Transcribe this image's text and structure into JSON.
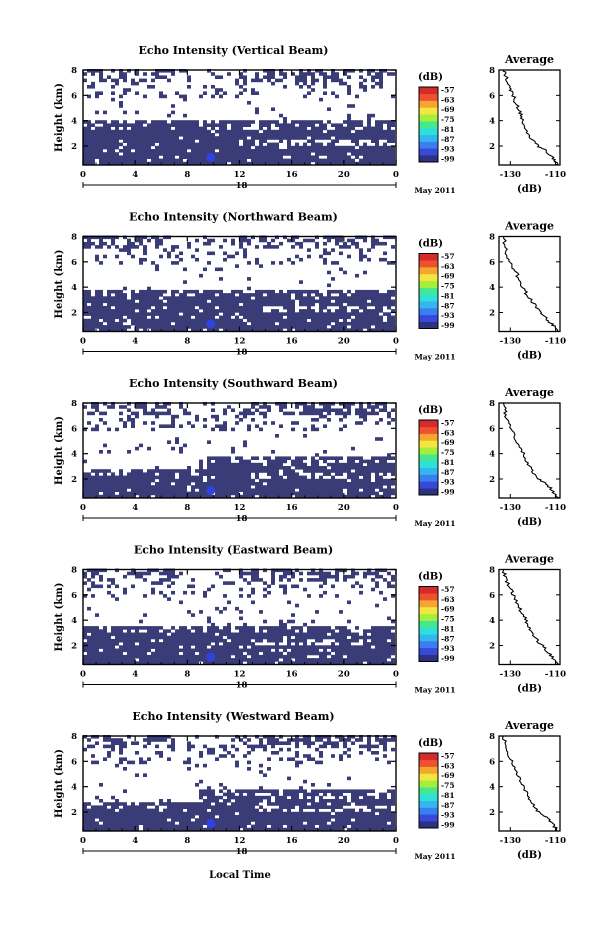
{
  "colors": {
    "echo": "#3a3c78",
    "echo_dark": "#2d2e6a",
    "blob": "#2e44e0",
    "colorbar": [
      "#2e3080",
      "#3848d8",
      "#3a7ef0",
      "#34b6f0",
      "#2ee0d8",
      "#44e890",
      "#a6ee3c",
      "#f4e640",
      "#f4a62e",
      "#ee5030",
      "#d42c2c"
    ]
  },
  "xlabel": "Local Time",
  "date_label": "May 2011",
  "day_label": "18",
  "ylabel": "Height (km)",
  "cbar_unit": "(dB)",
  "cbar_ticks": [
    "-57",
    "-63",
    "-69",
    "-75",
    "-81",
    "-87",
    "-93",
    "-99"
  ],
  "avg_title": "Average",
  "avg_xlabel": "(dB)",
  "chart_data": [
    {
      "type": "heatmap",
      "title": "Echo Intensity (Vertical Beam)",
      "x_ticks": [
        "0",
        "4",
        "8",
        "12",
        "16",
        "20",
        "0"
      ],
      "xlim": [
        0,
        24
      ],
      "y_ticks": [
        "2",
        "4",
        "6",
        "8"
      ],
      "ylim": [
        0.5,
        8
      ],
      "cbar_range_db": [
        -99,
        -57
      ],
      "dense_echo_top_km": [
        4.0,
        4.0
      ],
      "average_profile": {
        "x_ticks": [
          "-130",
          "-110"
        ],
        "xlim": [
          -135,
          -108
        ],
        "y_ticks": [
          "2",
          "4",
          "6",
          "8"
        ],
        "ylim": [
          0.5,
          8
        ],
        "points": [
          [
            -109,
            0.5
          ],
          [
            -111,
            1.0
          ],
          [
            -114,
            1.6
          ],
          [
            -118,
            2.0
          ],
          [
            -121,
            2.7
          ],
          [
            -124,
            3.4
          ],
          [
            -125,
            4.2
          ],
          [
            -126,
            4.8
          ],
          [
            -128,
            5.5
          ],
          [
            -129,
            6.2
          ],
          [
            -131,
            6.8
          ],
          [
            -132,
            7.5
          ],
          [
            -133,
            8.0
          ]
        ]
      }
    },
    {
      "type": "heatmap",
      "title": "Echo Intensity (Northward Beam)",
      "x_ticks": [
        "0",
        "4",
        "8",
        "12",
        "16",
        "20",
        "0"
      ],
      "xlim": [
        0,
        24
      ],
      "y_ticks": [
        "2",
        "4",
        "6",
        "8"
      ],
      "ylim": [
        0.5,
        8
      ],
      "cbar_range_db": [
        -99,
        -57
      ],
      "dense_echo_top_km": [
        3.8,
        3.8
      ],
      "average_profile": {
        "x_ticks": [
          "-130",
          "-110"
        ],
        "xlim": [
          -135,
          -108
        ],
        "y_ticks": [
          "2",
          "4",
          "6",
          "8"
        ],
        "ylim": [
          0.5,
          8
        ],
        "points": [
          [
            -109,
            0.5
          ],
          [
            -111,
            1.0
          ],
          [
            -114,
            1.5
          ],
          [
            -117,
            2.0
          ],
          [
            -120,
            2.8
          ],
          [
            -123,
            3.5
          ],
          [
            -125,
            4.2
          ],
          [
            -127,
            5.0
          ],
          [
            -129,
            5.6
          ],
          [
            -131,
            6.3
          ],
          [
            -132,
            7.0
          ],
          [
            -133,
            8.0
          ]
        ]
      }
    },
    {
      "type": "heatmap",
      "title": "Echo Intensity (Southward Beam)",
      "x_ticks": [
        "0",
        "4",
        "8",
        "12",
        "16",
        "20",
        "0"
      ],
      "xlim": [
        0,
        24
      ],
      "y_ticks": [
        "2",
        "4",
        "6",
        "8"
      ],
      "ylim": [
        0.5,
        8
      ],
      "cbar_range_db": [
        -99,
        -57
      ],
      "dense_echo_top_km": [
        2.8,
        3.7
      ],
      "average_profile": {
        "x_ticks": [
          "-130",
          "-110"
        ],
        "xlim": [
          -135,
          -108
        ],
        "y_ticks": [
          "2",
          "4",
          "6",
          "8"
        ],
        "ylim": [
          0.5,
          8
        ],
        "points": [
          [
            -109,
            0.5
          ],
          [
            -111,
            1.0
          ],
          [
            -114,
            1.6
          ],
          [
            -118,
            2.1
          ],
          [
            -121,
            2.8
          ],
          [
            -123,
            3.5
          ],
          [
            -125,
            4.3
          ],
          [
            -127,
            5.0
          ],
          [
            -129,
            5.7
          ],
          [
            -131,
            6.4
          ],
          [
            -132,
            7.2
          ],
          [
            -133,
            8.0
          ]
        ]
      }
    },
    {
      "type": "heatmap",
      "title": "Echo Intensity (Eastward Beam)",
      "x_ticks": [
        "0",
        "4",
        "8",
        "12",
        "16",
        "20",
        "0"
      ],
      "xlim": [
        0,
        24
      ],
      "y_ticks": [
        "2",
        "4",
        "6",
        "8"
      ],
      "ylim": [
        0.5,
        8
      ],
      "cbar_range_db": [
        -99,
        -57
      ],
      "dense_echo_top_km": [
        3.6,
        3.6
      ],
      "average_profile": {
        "x_ticks": [
          "-130",
          "-110"
        ],
        "xlim": [
          -135,
          -108
        ],
        "y_ticks": [
          "2",
          "4",
          "6",
          "8"
        ],
        "ylim": [
          0.5,
          8
        ],
        "points": [
          [
            -109,
            0.5
          ],
          [
            -111,
            1.0
          ],
          [
            -114,
            1.6
          ],
          [
            -117,
            2.2
          ],
          [
            -120,
            2.9
          ],
          [
            -122,
            3.6
          ],
          [
            -124,
            4.3
          ],
          [
            -126,
            5.0
          ],
          [
            -128,
            5.8
          ],
          [
            -130,
            6.5
          ],
          [
            -132,
            7.3
          ],
          [
            -133,
            8.0
          ]
        ]
      }
    },
    {
      "type": "heatmap",
      "title": "Echo Intensity (Westward Beam)",
      "x_ticks": [
        "0",
        "4",
        "8",
        "12",
        "16",
        "20",
        "0"
      ],
      "xlim": [
        0,
        24
      ],
      "y_ticks": [
        "2",
        "4",
        "6",
        "8"
      ],
      "ylim": [
        0.5,
        8
      ],
      "cbar_range_db": [
        -99,
        -57
      ],
      "dense_echo_top_km": [
        2.8,
        3.7
      ],
      "average_profile": {
        "x_ticks": [
          "-130",
          "-110"
        ],
        "xlim": [
          -135,
          -108
        ],
        "y_ticks": [
          "2",
          "4",
          "6",
          "8"
        ],
        "ylim": [
          0.5,
          8
        ],
        "points": [
          [
            -109,
            0.5
          ],
          [
            -111,
            1.0
          ],
          [
            -114,
            1.6
          ],
          [
            -118,
            2.1
          ],
          [
            -121,
            2.8
          ],
          [
            -123,
            3.5
          ],
          [
            -125,
            4.2
          ],
          [
            -127,
            5.0
          ],
          [
            -129,
            5.8
          ],
          [
            -131,
            6.5
          ],
          [
            -132,
            7.2
          ],
          [
            -133,
            8.0
          ]
        ]
      }
    }
  ]
}
